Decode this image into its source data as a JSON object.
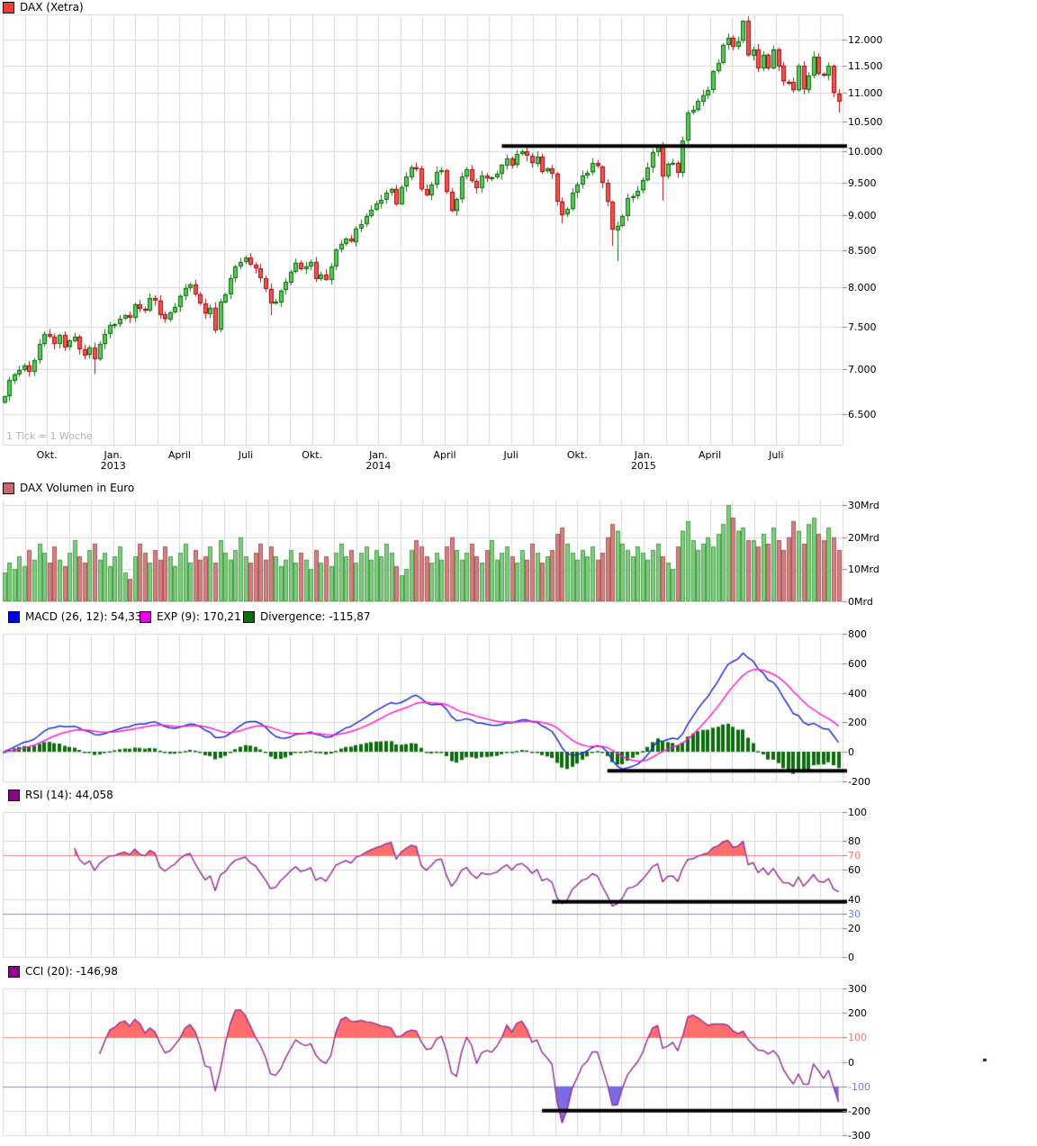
{
  "chart_data": [
    {
      "type": "candlestick",
      "title": "DAX (Xetra)",
      "swatch_color": "#f03b3b",
      "timeframe_note": "1 Tick = 1 Woche",
      "x_axis": {
        "labels": [
          {
            "month": "Okt."
          },
          {
            "month": "Jan.",
            "year": "2013"
          },
          {
            "month": "April"
          },
          {
            "month": "Juli"
          },
          {
            "month": "Okt."
          },
          {
            "month": "Jan.",
            "year": "2014"
          },
          {
            "month": "April"
          },
          {
            "month": "Juli"
          },
          {
            "month": "Okt."
          },
          {
            "month": "Jan.",
            "year": "2015"
          },
          {
            "month": "April"
          },
          {
            "month": "Juli"
          }
        ]
      },
      "y_axis": {
        "scale": "log",
        "ticks": [
          {
            "v": 12000,
            "label": "12.000"
          },
          {
            "v": 11500,
            "label": "11.500"
          },
          {
            "v": 11000,
            "label": "11.000"
          },
          {
            "v": 10500,
            "label": "10.500"
          },
          {
            "v": 10000,
            "label": "10.000"
          },
          {
            "v": 9500,
            "label": "9.500"
          },
          {
            "v": 9000,
            "label": "9.000"
          },
          {
            "v": 8500,
            "label": "8.500"
          },
          {
            "v": 8000,
            "label": "8.000"
          },
          {
            "v": 7500,
            "label": "7.500"
          },
          {
            "v": 7000,
            "label": "7.000"
          },
          {
            "v": 6500,
            "label": "6.500"
          }
        ]
      },
      "weekly_closes": [
        6690,
        6870,
        6940,
        6990,
        7040,
        6970,
        7100,
        7290,
        7410,
        7380,
        7290,
        7400,
        7250,
        7330,
        7380,
        7230,
        7160,
        7250,
        7110,
        7290,
        7410,
        7520,
        7530,
        7600,
        7640,
        7610,
        7780,
        7720,
        7700,
        7860,
        7830,
        7650,
        7590,
        7680,
        7750,
        7890,
        7990,
        8040,
        7910,
        7790,
        7660,
        7740,
        7460,
        7810,
        7910,
        8120,
        8280,
        8340,
        8400,
        8300,
        8250,
        8120,
        7980,
        7790,
        7810,
        7960,
        8070,
        8210,
        8330,
        8240,
        8280,
        8340,
        8110,
        8170,
        8100,
        8280,
        8510,
        8590,
        8660,
        8620,
        8810,
        8870,
        8990,
        9080,
        9170,
        9230,
        9340,
        9400,
        9170,
        9430,
        9590,
        9740,
        9720,
        9390,
        9300,
        9460,
        9660,
        9690,
        9350,
        9060,
        9240,
        9590,
        9700,
        9520,
        9410,
        9600,
        9560,
        9580,
        9630,
        9770,
        9880,
        9770,
        9950,
        9990,
        9920,
        9800,
        9910,
        9670,
        9720,
        9640,
        9210,
        9010,
        9090,
        9340,
        9470,
        9610,
        9650,
        9800,
        9750,
        9490,
        9200,
        8790,
        8850,
        8990,
        9260,
        9290,
        9370,
        9530,
        9730,
        9980,
        10090,
        9590,
        9790,
        9810,
        9650,
        10170,
        10650,
        10690,
        10850,
        10960,
        11050,
        11400,
        11550,
        11900,
        12040,
        11870,
        11970,
        12370,
        11690,
        11810,
        11450,
        11710,
        11450,
        11815,
        11490,
        11200,
        11195,
        11040,
        11490,
        11060,
        11320,
        11670,
        11350,
        11310,
        11490,
        10990,
        10850
      ],
      "first_open": 6620,
      "wick_overrides": {
        "18": {
          "low": 6940
        },
        "53": {
          "low": 7640
        },
        "111": {
          "low": 8880
        },
        "121": {
          "low": 8560
        },
        "122": {
          "low": 8350
        },
        "131": {
          "low": 9220
        },
        "147": {
          "high": 12390
        },
        "166": {
          "low": 10650
        }
      },
      "trendline": {
        "value": 10080,
        "from_index": 99,
        "color": "#000000"
      },
      "colors": {
        "up_fill": "#5ec65e",
        "up_border": "#0c6b0c",
        "down_fill": "#f05454",
        "down_border": "#a50f0f",
        "grid": "#d9d9d9"
      }
    },
    {
      "type": "bar",
      "legend_label": "DAX Volumen in Euro",
      "swatch_color": "#c96a6a",
      "y_axis": {
        "ticks": [
          {
            "v": 30,
            "label": "30Mrd"
          },
          {
            "v": 20,
            "label": "20Mrd"
          },
          {
            "v": 10,
            "label": "10Mrd"
          },
          {
            "v": 0,
            "label": "0Mrd"
          }
        ],
        "unit": "Mrd"
      },
      "values_mrd": [
        9,
        12,
        10,
        14,
        11,
        16,
        13,
        18,
        15,
        12,
        17,
        13,
        11,
        15,
        19,
        14,
        12,
        16,
        18,
        13,
        15,
        11,
        14,
        17,
        9,
        7,
        14,
        18,
        15,
        12,
        16,
        13,
        17,
        14,
        11,
        15,
        18,
        12,
        16,
        13,
        14,
        17,
        12,
        19,
        15,
        13,
        16,
        20,
        14,
        12,
        15,
        18,
        13,
        17,
        14,
        11,
        13,
        16,
        12,
        15,
        13,
        10,
        16,
        12,
        14,
        11,
        15,
        18,
        14,
        16,
        12,
        15,
        17,
        13,
        16,
        14,
        18,
        15,
        11,
        8,
        10,
        16,
        19,
        17,
        14,
        12,
        15,
        13,
        17,
        20,
        16,
        13,
        15,
        18,
        14,
        12,
        16,
        19,
        13,
        15,
        17,
        14,
        12,
        16,
        13,
        18,
        15,
        12,
        14,
        16,
        21,
        23,
        18,
        15,
        13,
        16,
        14,
        17,
        13,
        15,
        20,
        24,
        22,
        18,
        16,
        14,
        17,
        15,
        13,
        16,
        18,
        14,
        12,
        10,
        17,
        22,
        25,
        19,
        16,
        18,
        20,
        17,
        21,
        24,
        30,
        26,
        22,
        23,
        19,
        19,
        17,
        21,
        18,
        23,
        19,
        16,
        20,
        25,
        22,
        18,
        24,
        26,
        21,
        19,
        23,
        20,
        16
      ],
      "colors": {
        "up_fill": "#7fce7f",
        "up_border": "#4f9f4f",
        "down_fill": "#d38080",
        "down_border": "#a85c5c"
      }
    },
    {
      "type": "line+histogram",
      "indicator": "MACD",
      "params": {
        "slow": 26,
        "fast": 12,
        "signal": 9
      },
      "legend": [
        {
          "label": "MACD (26, 12): 54,335",
          "color": "#0000e6"
        },
        {
          "label": "EXP (9): 170,21",
          "color": "#e600e6"
        },
        {
          "label": "Divergence: -115,87",
          "color": "#0a6e0a"
        }
      ],
      "y_axis": {
        "ticks": [
          {
            "v": 800,
            "label": "800"
          },
          {
            "v": 600,
            "label": "600"
          },
          {
            "v": 400,
            "label": "400"
          },
          {
            "v": 200,
            "label": "200"
          },
          {
            "v": 0,
            "label": "0"
          },
          {
            "v": -200,
            "label": "-200"
          }
        ]
      },
      "derived_from": "weekly_closes",
      "trendline": {
        "value": -130,
        "from_index": 120,
        "color": "#000000"
      },
      "colors": {
        "macd_line": "#1f2fd4",
        "signal_line": "#ff1fd4",
        "histogram": "#0c6e0c"
      }
    },
    {
      "type": "line",
      "indicator": "RSI",
      "params": {
        "period": 14
      },
      "legend": [
        {
          "label": "RSI (14): 44,058",
          "color": "#8b008b"
        }
      ],
      "y_axis": {
        "ticks": [
          {
            "v": 100,
            "label": "100"
          },
          {
            "v": 80,
            "label": "80"
          },
          {
            "v": 70,
            "label": "70",
            "color": "#ff7766"
          },
          {
            "v": 60,
            "label": "60"
          },
          {
            "v": 40,
            "label": "40"
          },
          {
            "v": 30,
            "label": "30",
            "color": "#7777ee"
          },
          {
            "v": 20,
            "label": "20"
          },
          {
            "v": 0,
            "label": "0"
          }
        ]
      },
      "thresholds": {
        "upper": 70,
        "lower": 30
      },
      "derived_from": "weekly_closes",
      "trendline": {
        "value": 38,
        "from_index": 109,
        "color": "#000000"
      },
      "colors": {
        "line": "#993399",
        "over_fill": "#ff5d5d",
        "under_fill": "#6b5ce0",
        "upper_line": "#ff8877",
        "lower_line": "#8888ee"
      }
    },
    {
      "type": "line",
      "indicator": "CCI",
      "params": {
        "period": 20
      },
      "legend": [
        {
          "label": "CCI (20): -146,98",
          "color": "#8b008b"
        }
      ],
      "y_axis": {
        "ticks": [
          {
            "v": 300,
            "label": "300"
          },
          {
            "v": 200,
            "label": "200"
          },
          {
            "v": 100,
            "label": "100",
            "color": "#ff7766"
          },
          {
            "v": 0,
            "label": "0"
          },
          {
            "v": -100,
            "label": "-100",
            "color": "#7777ee"
          },
          {
            "v": -200,
            "label": "-200"
          },
          {
            "v": -300,
            "label": "-300"
          }
        ]
      },
      "thresholds": {
        "upper": 100,
        "lower": -100
      },
      "derived_from": "weekly_closes",
      "trendline": {
        "value": -200,
        "from_index": 107,
        "color": "#000000"
      },
      "colors": {
        "line": "#993399",
        "over_fill": "#ff5d5d",
        "under_fill": "#6b5ce0",
        "upper_line": "#ff8877",
        "lower_line": "#8888ee"
      }
    }
  ]
}
